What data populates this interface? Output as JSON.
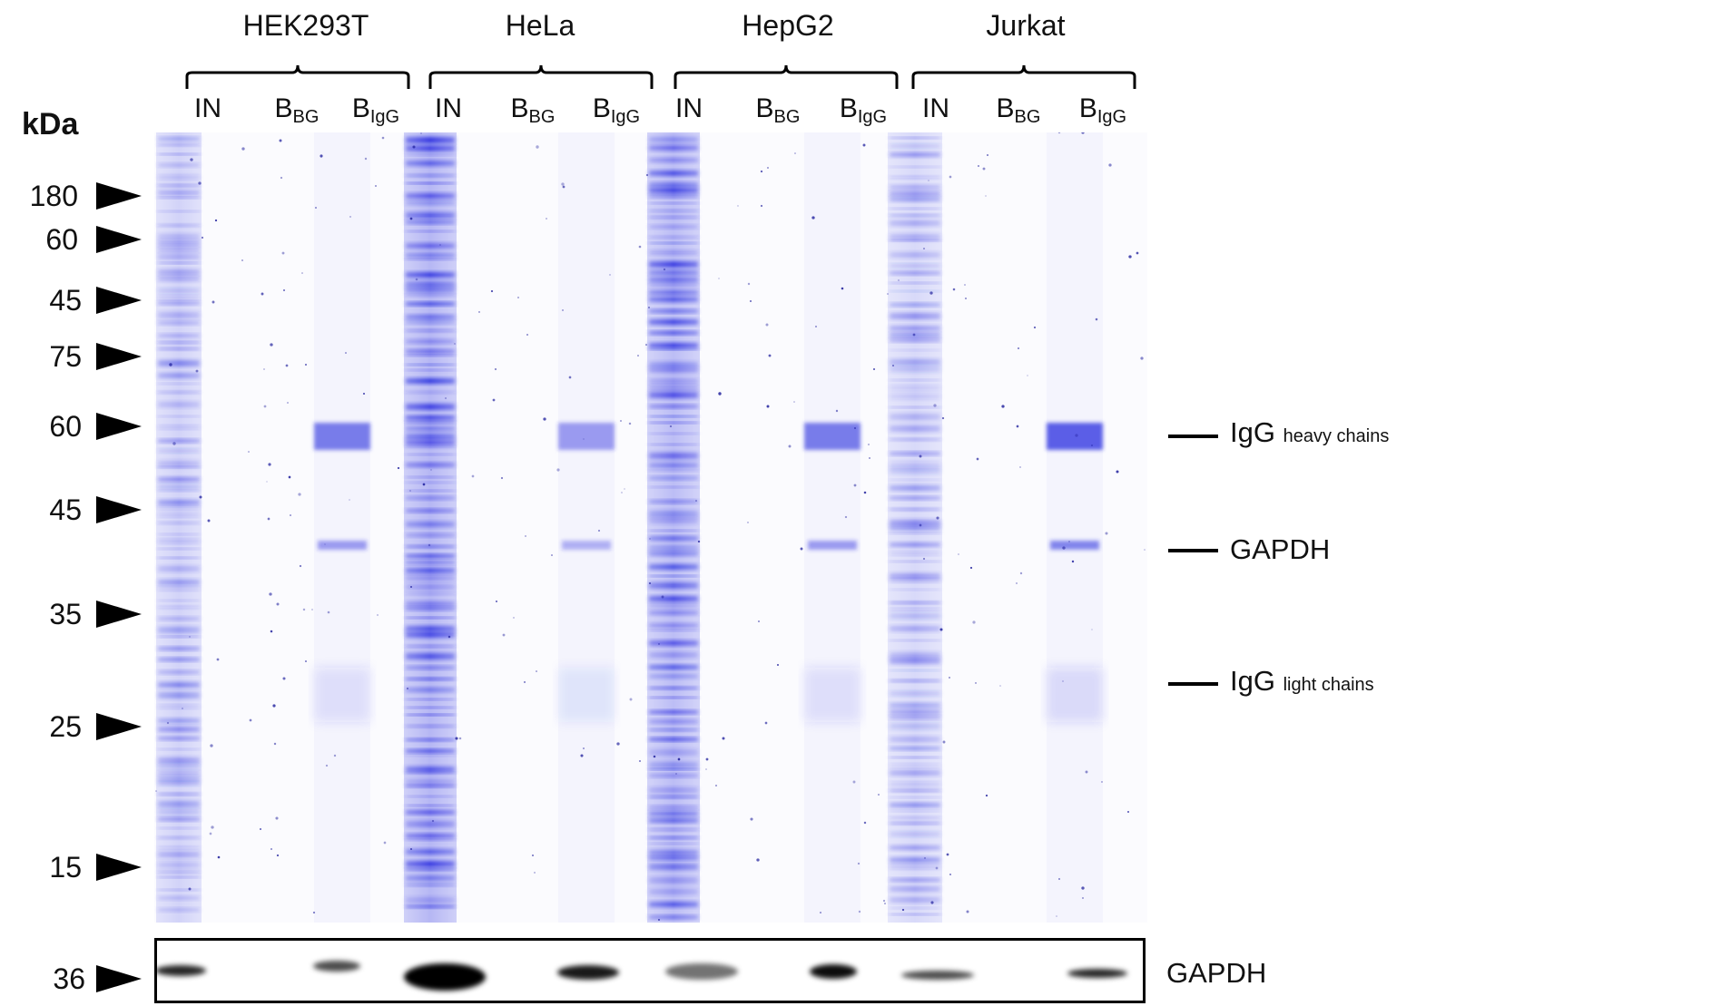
{
  "groups": [
    {
      "name": "HEK293T",
      "lanes": [
        {
          "main": "IN",
          "sub": ""
        },
        {
          "main": "B",
          "sub": "BG"
        },
        {
          "main": "B",
          "sub": "IgG"
        }
      ]
    },
    {
      "name": "HeLa",
      "lanes": [
        {
          "main": "IN",
          "sub": ""
        },
        {
          "main": "B",
          "sub": "BG"
        },
        {
          "main": "B",
          "sub": "IgG"
        }
      ]
    },
    {
      "name": "HepG2",
      "lanes": [
        {
          "main": "IN",
          "sub": ""
        },
        {
          "main": "B",
          "sub": "BG"
        },
        {
          "main": "B",
          "sub": "IgG"
        }
      ]
    },
    {
      "name": "Jurkat",
      "lanes": [
        {
          "main": "IN",
          "sub": ""
        },
        {
          "main": "B",
          "sub": "BG"
        },
        {
          "main": "B",
          "sub": "IgG"
        }
      ]
    }
  ],
  "unit_label": "kDa",
  "markers": [
    "180",
    "60",
    "45",
    "75",
    "60",
    "45",
    "35",
    "25",
    "15"
  ],
  "blot_marker": "36",
  "band_labels": {
    "heavy": {
      "main": "IgG",
      "sub": "heavy chains"
    },
    "gapdh": {
      "main": "GAPDH"
    },
    "light": {
      "main": "IgG",
      "sub": "light chains"
    }
  },
  "blot_label": "GAPDH",
  "colors": {
    "stain": "#2a2ee0",
    "background": "#ffffff",
    "ink": "#000000"
  }
}
